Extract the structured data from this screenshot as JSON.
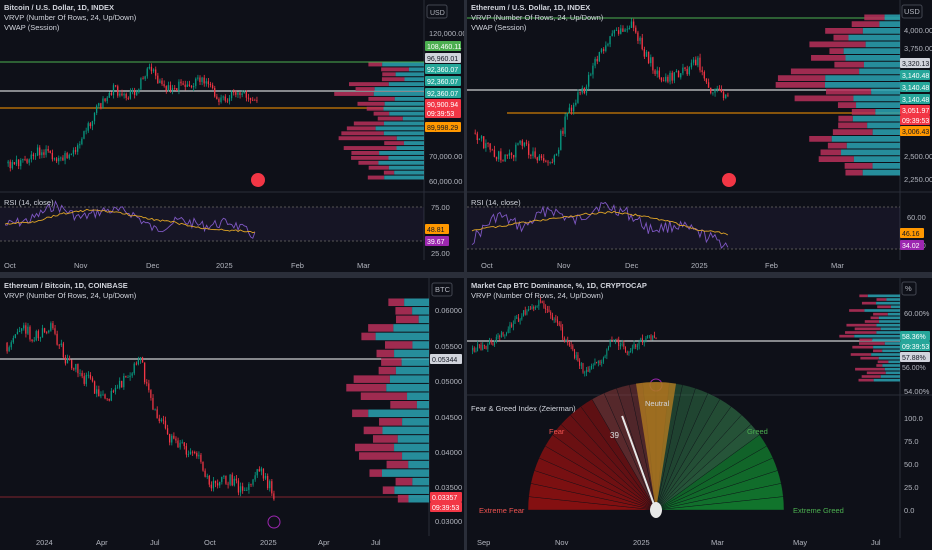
{
  "colors": {
    "bg": "#0e1018",
    "axis_text": "#b2b5be",
    "grid": "#1c1f2b",
    "up": "#26a69a",
    "down": "#ef5350",
    "candle_up": "#089981",
    "candle_down": "#f23645",
    "vol_up": "#2aa3b3",
    "vol_down": "#b8305a",
    "vwap": "#ff9800",
    "rsi": "#7e57c2",
    "rsi_ma": "#e0a526",
    "ref_green": "#4caf50",
    "white": "#ffffff"
  },
  "panels": {
    "btc": {
      "title": "Bitcoin / U.S. Dollar, 1D, INDEX",
      "indicators": [
        "VRVP (Number Of Rows, 24, Up/Down)",
        "VWAP (Session)"
      ],
      "currency": "USD",
      "price_ticks": [
        "120,000.00",
        "70,000.00",
        "60,000.00"
      ],
      "labels": [
        {
          "text": "108,460.11",
          "kind": "green"
        },
        {
          "text": "96,960.01",
          "kind": "white"
        },
        {
          "text": "92,360.07",
          "kind": "teal"
        },
        {
          "text": "92,360.07",
          "kind": "teal"
        },
        {
          "text": "92,360.07",
          "kind": "teal"
        },
        {
          "text": "90,900.94",
          "kind": "red"
        },
        {
          "text": "09:39:53",
          "kind": "red"
        },
        {
          "text": "89,998.29",
          "kind": "orange"
        }
      ],
      "rsi_title": "RSI (14, close)",
      "rsi_ticks": [
        "75.00",
        "25.00"
      ],
      "rsi_labels": [
        {
          "text": "48.81",
          "kind": "orange"
        },
        {
          "text": "39.67",
          "kind": "purple"
        }
      ],
      "x_ticks": [
        "Oct",
        "Nov",
        "Dec",
        "2025",
        "Feb",
        "Mar"
      ]
    },
    "eth": {
      "title": "Ethereum / U.S. Dollar, 1D, INDEX",
      "indicators": [
        "VRVP (Number Of Rows, 24, Up/Down)",
        "VWAP (Session)"
      ],
      "currency": "USD",
      "price_ticks": [
        "4,000.00",
        "3,750.00",
        "2,500.00",
        "2,250.00"
      ],
      "labels": [
        {
          "text": "3,320.13",
          "kind": "white"
        },
        {
          "text": "3,140.48",
          "kind": "teal"
        },
        {
          "text": "3,140.48",
          "kind": "teal"
        },
        {
          "text": "3,140.48",
          "kind": "teal"
        },
        {
          "text": "3,051.97",
          "kind": "red"
        },
        {
          "text": "09:39:53",
          "kind": "red"
        },
        {
          "text": "3,006.43",
          "kind": "orange"
        }
      ],
      "rsi_title": "RSI (14, close)",
      "rsi_ticks": [
        "60.00",
        "40.00"
      ],
      "rsi_labels": [
        {
          "text": "46.16",
          "kind": "orange"
        },
        {
          "text": "34.02",
          "kind": "purple"
        }
      ],
      "x_ticks": [
        "Oct",
        "Nov",
        "Dec",
        "2025",
        "Feb",
        "Mar"
      ]
    },
    "ethbtc": {
      "title": "Ethereum / Bitcoin, 1D, COINBASE",
      "indicators": [
        "VRVP (Number Of Rows, 24, Up/Down)"
      ],
      "currency": "BTC",
      "price_ticks": [
        "0.06000",
        "0.05500",
        "0.05000",
        "0.04500",
        "0.04000",
        "0.03500",
        "0.03000"
      ],
      "labels": [
        {
          "text": "0.05344",
          "kind": "white"
        },
        {
          "text": "0.03357",
          "kind": "red"
        },
        {
          "text": "09:39:53",
          "kind": "red"
        }
      ],
      "x_ticks": [
        "2024",
        "Apr",
        "Jul",
        "Oct",
        "2025",
        "Apr",
        "Jul"
      ]
    },
    "dom": {
      "title": "Market Cap BTC Dominance, %, 1D, CRYPTOCAP",
      "indicators": [
        "VRVP (Number Of Rows, 24, Up/Down)"
      ],
      "currency": "%",
      "price_ticks": [
        "60.00%",
        "54.00%"
      ],
      "labels": [
        {
          "text": "58.36%",
          "kind": "teal"
        },
        {
          "text": "09:39:53",
          "kind": "teal"
        },
        {
          "text": "57.88%",
          "kind": "white"
        },
        {
          "text": "56.00%",
          "kind": "plain"
        }
      ]
    },
    "fg": {
      "title": "Fear & Greed Index (Zeierman)",
      "value": 39,
      "value_label": "39",
      "zones": [
        "Extreme Fear",
        "Fear",
        "Neutral",
        "Greed",
        "Extreme Greed"
      ],
      "scale_ticks": [
        "100.0",
        "75.0",
        "50.0",
        "25.0",
        "0.0"
      ],
      "x_ticks": [
        "Sep",
        "Nov",
        "2025",
        "Mar",
        "May",
        "Jul"
      ]
    }
  }
}
